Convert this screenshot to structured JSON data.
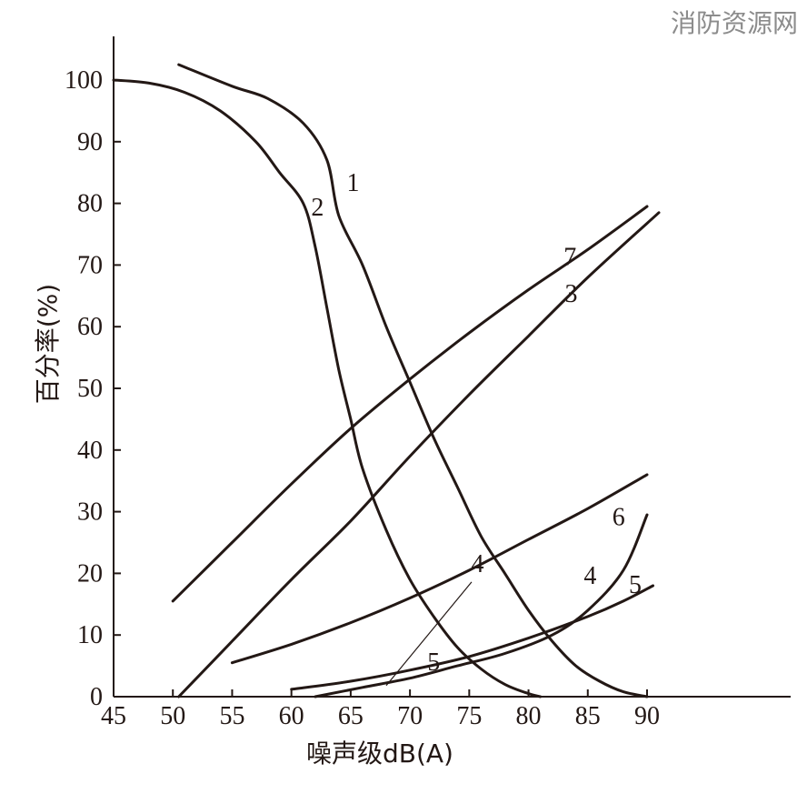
{
  "watermark": "消防资源网",
  "chart_data": {
    "type": "line",
    "xlabel": "噪声级dB(A)",
    "ylabel": "百分率(%)",
    "xlim": [
      45,
      90
    ],
    "ylim": [
      0,
      100
    ],
    "xticks": [
      45,
      50,
      55,
      60,
      65,
      70,
      75,
      80,
      85,
      90
    ],
    "yticks": [
      0,
      10,
      20,
      30,
      40,
      50,
      60,
      70,
      80,
      90,
      100
    ],
    "grid": false,
    "series": [
      {
        "name": "1",
        "points": [
          [
            50.5,
            102.5
          ],
          [
            55,
            99
          ],
          [
            58,
            97
          ],
          [
            61,
            93
          ],
          [
            63,
            87
          ],
          [
            64,
            78
          ],
          [
            66,
            70
          ],
          [
            68,
            60
          ],
          [
            70,
            51
          ],
          [
            72,
            42
          ],
          [
            74,
            34
          ],
          [
            76,
            26
          ],
          [
            78,
            20
          ],
          [
            80,
            14
          ],
          [
            82,
            9
          ],
          [
            84,
            5
          ],
          [
            86,
            2.5
          ],
          [
            88,
            0.8
          ],
          [
            90,
            0
          ]
        ]
      },
      {
        "name": "2",
        "points": [
          [
            45,
            100
          ],
          [
            48,
            99.5
          ],
          [
            51,
            98
          ],
          [
            54,
            95
          ],
          [
            57,
            90
          ],
          [
            59,
            85
          ],
          [
            61,
            80
          ],
          [
            62,
            73
          ],
          [
            63,
            63
          ],
          [
            64,
            53
          ],
          [
            65,
            45
          ],
          [
            66,
            37
          ],
          [
            68,
            27
          ],
          [
            70,
            19
          ],
          [
            72,
            13
          ],
          [
            74,
            8
          ],
          [
            76,
            4.5
          ],
          [
            78,
            2
          ],
          [
            80,
            0.5
          ],
          [
            81,
            0
          ]
        ]
      },
      {
        "name": "3",
        "points": [
          [
            50.5,
            0
          ],
          [
            55,
            9
          ],
          [
            60,
            19
          ],
          [
            65,
            28.5
          ],
          [
            70,
            39
          ],
          [
            75,
            49
          ],
          [
            80,
            58.5
          ],
          [
            85,
            68
          ],
          [
            91,
            78.5
          ]
        ]
      },
      {
        "name": "4",
        "points": [
          [
            62,
            0
          ],
          [
            66,
            1.5
          ],
          [
            70,
            3
          ],
          [
            74,
            5
          ],
          [
            78,
            7
          ],
          [
            82,
            10
          ],
          [
            85,
            14
          ],
          [
            88,
            20.5
          ],
          [
            90,
            29.5
          ]
        ]
      },
      {
        "name": "5",
        "points": [
          [
            60,
            1.2
          ],
          [
            65,
            2.5
          ],
          [
            70,
            4.3
          ],
          [
            75,
            6.5
          ],
          [
            80,
            9.5
          ],
          [
            85,
            13
          ],
          [
            88,
            15.5
          ],
          [
            90.5,
            18
          ]
        ]
      },
      {
        "name": "6",
        "points": [
          [
            55,
            5.5
          ],
          [
            60,
            8.5
          ],
          [
            65,
            12
          ],
          [
            70,
            16
          ],
          [
            75,
            20.5
          ],
          [
            80,
            25.5
          ],
          [
            85,
            30.5
          ],
          [
            90,
            36
          ]
        ]
      },
      {
        "name": "7",
        "points": [
          [
            50,
            15.5
          ],
          [
            55,
            25
          ],
          [
            60,
            34.5
          ],
          [
            65,
            43.5
          ],
          [
            70,
            51.5
          ],
          [
            75,
            59
          ],
          [
            80,
            66
          ],
          [
            85,
            72.5
          ],
          [
            90,
            79.5
          ]
        ]
      }
    ],
    "annotations": [
      {
        "text": "1",
        "x": 65.2,
        "y": 82
      },
      {
        "text": "2",
        "x": 62.2,
        "y": 78
      },
      {
        "text": "7",
        "x": 83.5,
        "y": 70
      },
      {
        "text": "3",
        "x": 83.6,
        "y": 64
      },
      {
        "text": "6",
        "x": 87.6,
        "y": 27.8
      },
      {
        "text": "4",
        "x": 85.2,
        "y": 18.3
      },
      {
        "text": "5",
        "x": 89.0,
        "y": 16.8
      },
      {
        "text": "4",
        "x": 75.7,
        "y": 20.2
      },
      {
        "text": "5",
        "x": 72.0,
        "y": 4.3
      }
    ]
  }
}
